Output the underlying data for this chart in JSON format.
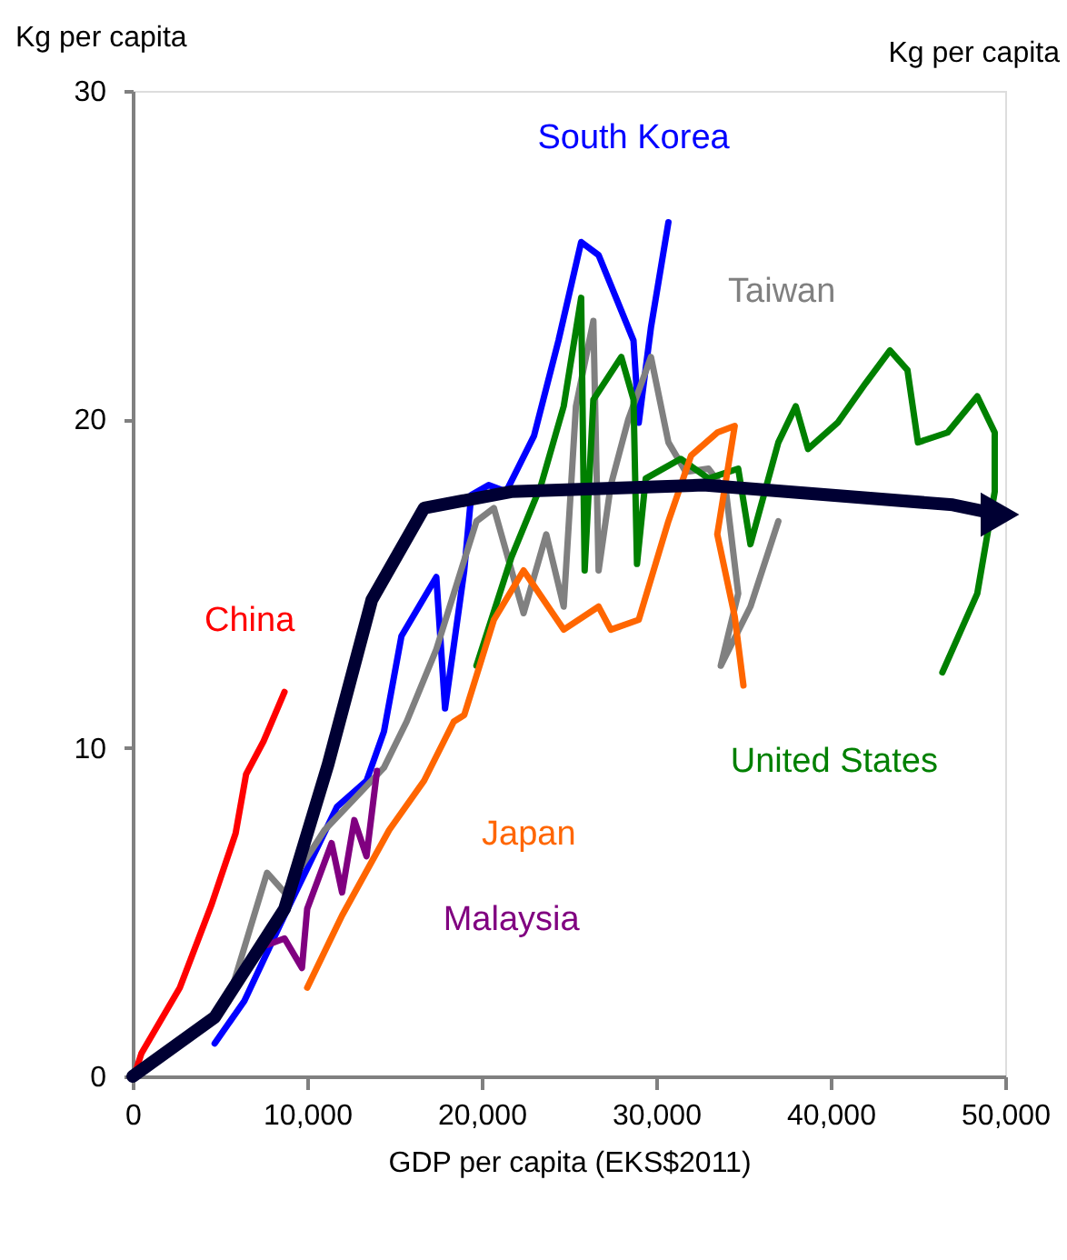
{
  "chart_data": {
    "type": "line",
    "xlabel": "GDP  per capita  (EKS$2011)",
    "ylabel": "Kg per capita",
    "annotations": [
      "Kg per capita"
    ],
    "xlim": [
      0,
      50000
    ],
    "ylim": [
      0,
      30
    ],
    "xticks": [
      0,
      {
        "value": 10000,
        "label": "10,000"
      },
      {
        "value": 20000,
        "label": "20,000"
      },
      {
        "value": 30000,
        "label": "30,000"
      },
      {
        "value": 40000,
        "label": "40,000"
      },
      {
        "value": 50000,
        "label": "50,000"
      }
    ],
    "yticks": [
      0,
      10,
      20,
      30
    ],
    "grid": false,
    "marker": "none",
    "line_style": "solid",
    "series": [
      {
        "name": "China",
        "color": "#ff0000",
        "x": [
          200,
          500,
          2700,
          4500,
          5900,
          6500,
          7500,
          8700
        ],
        "values": [
          0.2,
          0.7,
          2.7,
          5.2,
          7.4,
          9.2,
          10.2,
          11.7
        ]
      },
      {
        "name": "South Korea",
        "color": "#0000ff",
        "x": [
          4700,
          6400,
          8700,
          11700,
          13400,
          14400,
          15400,
          17400,
          17900,
          19000,
          19400,
          20400,
          21400,
          23000,
          24400,
          25700,
          26700,
          28700,
          29000,
          29700,
          30700
        ],
        "values": [
          1.0,
          2.3,
          4.9,
          8.2,
          9.0,
          10.5,
          13.4,
          15.2,
          11.2,
          15.4,
          17.7,
          18.0,
          17.8,
          19.5,
          22.4,
          25.4,
          25.0,
          22.4,
          19.9,
          22.8,
          26.0
        ]
      },
      {
        "name": "Taiwan",
        "color": "#808080",
        "x": [
          5700,
          7700,
          8700,
          11000,
          14400,
          15700,
          17400,
          19700,
          20700,
          22400,
          23700,
          24700,
          25400,
          26400,
          26700,
          27400,
          28400,
          29700,
          30700,
          31700,
          33000,
          34000,
          34700,
          33700,
          35400,
          37000
        ],
        "values": [
          2.7,
          6.2,
          5.6,
          7.5,
          9.4,
          10.8,
          13.0,
          16.9,
          17.3,
          14.1,
          16.5,
          14.3,
          20.4,
          23.0,
          15.4,
          18.0,
          20.0,
          21.9,
          19.3,
          18.4,
          18.5,
          17.8,
          14.7,
          12.5,
          14.3,
          16.9
        ]
      },
      {
        "name": "United States",
        "color": "#008000",
        "x": [
          19700,
          21700,
          23400,
          24700,
          25700,
          25900,
          26400,
          28000,
          28700,
          28900,
          29400,
          31400,
          33000,
          34700,
          35400,
          37000,
          38000,
          38700,
          40400,
          42000,
          43400,
          44400,
          45000,
          46700,
          48400,
          49400,
          49400,
          48400,
          46400
        ],
        "values": [
          12.5,
          15.8,
          18.0,
          20.4,
          23.7,
          15.4,
          20.6,
          21.9,
          20.6,
          15.6,
          18.2,
          18.8,
          18.2,
          18.5,
          16.2,
          19.3,
          20.4,
          19.1,
          19.9,
          21.1,
          22.1,
          21.5,
          19.3,
          19.6,
          20.7,
          19.6,
          17.8,
          14.7,
          12.3
        ]
      },
      {
        "name": "Japan",
        "color": "#ff6600",
        "x": [
          10000,
          12000,
          14700,
          16700,
          18400,
          19000,
          20700,
          22400,
          24700,
          26700,
          27400,
          29000,
          30700,
          32000,
          33500,
          34500,
          33500,
          34500,
          35000
        ],
        "values": [
          2.7,
          4.9,
          7.5,
          9.0,
          10.8,
          11.0,
          13.9,
          15.4,
          13.6,
          14.3,
          13.6,
          13.9,
          16.9,
          18.9,
          19.6,
          19.8,
          16.5,
          14.0,
          11.9
        ]
      },
      {
        "name": "Malaysia",
        "color": "#800080",
        "x": [
          7700,
          8700,
          9700,
          10000,
          11400,
          12000,
          12700,
          13400,
          14000
        ],
        "values": [
          4.0,
          4.2,
          3.3,
          5.1,
          7.1,
          5.6,
          7.8,
          6.7,
          9.3
        ]
      },
      {
        "color": "#000033",
        "x": [
          0,
          4700,
          8700,
          11200,
          13700,
          16700,
          21700,
          32700,
          47000,
          49700
        ],
        "values": [
          0,
          1.8,
          5.1,
          9.5,
          14.5,
          17.3,
          17.8,
          18.0,
          17.4,
          17.1
        ]
      }
    ]
  }
}
